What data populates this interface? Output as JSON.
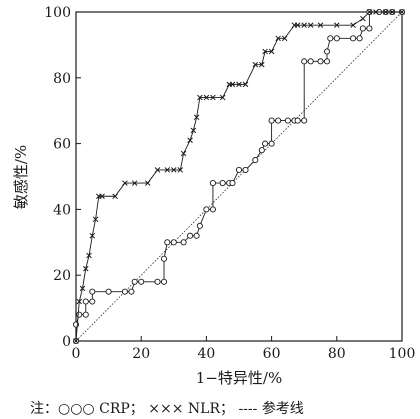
{
  "chart_data": {
    "type": "line",
    "title": "",
    "xlabel": "1−特异性/%",
    "ylabel": "敏感性/%",
    "xlim": [
      0,
      100
    ],
    "ylim": [
      0,
      100
    ],
    "xticks": [
      0,
      20,
      40,
      60,
      80,
      100
    ],
    "yticks": [
      0,
      20,
      40,
      60,
      80,
      100
    ],
    "grid": false,
    "note": {
      "prefix": "注：",
      "entries": [
        {
          "symbol": "○○○",
          "label": "CRP",
          "sep": "；"
        },
        {
          "symbol": "×××",
          "label": "NLR",
          "sep": "；"
        },
        {
          "symbol": "----",
          "label": "参考线",
          "sep": ""
        }
      ]
    },
    "series": [
      {
        "name": "CRP",
        "marker": "circle",
        "x": [
          0,
          0,
          1,
          3,
          3,
          5,
          5,
          10,
          15,
          17,
          18,
          20,
          25,
          27,
          27,
          28,
          30,
          33,
          35,
          37,
          38,
          40,
          42,
          42,
          45,
          47,
          48,
          50,
          52,
          55,
          57,
          58,
          60,
          60,
          62,
          65,
          67,
          68,
          70,
          70,
          72,
          75,
          77,
          77,
          78,
          80,
          85,
          87,
          88,
          90,
          90,
          93,
          95,
          97,
          100
        ],
        "y": [
          0,
          5,
          8,
          8,
          12,
          12,
          15,
          15,
          15,
          15,
          18,
          18,
          18,
          18,
          25,
          30,
          30,
          30,
          32,
          32,
          35,
          40,
          40,
          48,
          48,
          48,
          48,
          52,
          52,
          55,
          58,
          60,
          60,
          67,
          67,
          67,
          67,
          67,
          67,
          85,
          85,
          85,
          85,
          88,
          92,
          92,
          92,
          92,
          95,
          95,
          100,
          100,
          100,
          100,
          100
        ]
      },
      {
        "name": "NLR",
        "marker": "x",
        "x": [
          0,
          1,
          2,
          3,
          4,
          5,
          6,
          7,
          8,
          12,
          15,
          18,
          22,
          25,
          28,
          30,
          32,
          33,
          35,
          36,
          37,
          38,
          40,
          42,
          45,
          47,
          48,
          50,
          52,
          55,
          57,
          58,
          60,
          62,
          64,
          67,
          68,
          70,
          72,
          75,
          80,
          85,
          88,
          90,
          92,
          95,
          97,
          100
        ],
        "y": [
          0,
          12,
          16,
          22,
          26,
          32,
          37,
          44,
          44,
          44,
          48,
          48,
          48,
          52,
          52,
          52,
          52,
          57,
          61,
          64,
          68,
          74,
          74,
          74,
          74,
          78,
          78,
          78,
          78,
          84,
          84,
          88,
          88,
          92,
          92,
          96,
          96,
          96,
          96,
          96,
          96,
          96,
          98,
          100,
          100,
          100,
          100,
          100
        ]
      },
      {
        "name": "参考线",
        "marker": "none",
        "x": [
          0,
          100
        ],
        "y": [
          0,
          100
        ]
      }
    ]
  }
}
